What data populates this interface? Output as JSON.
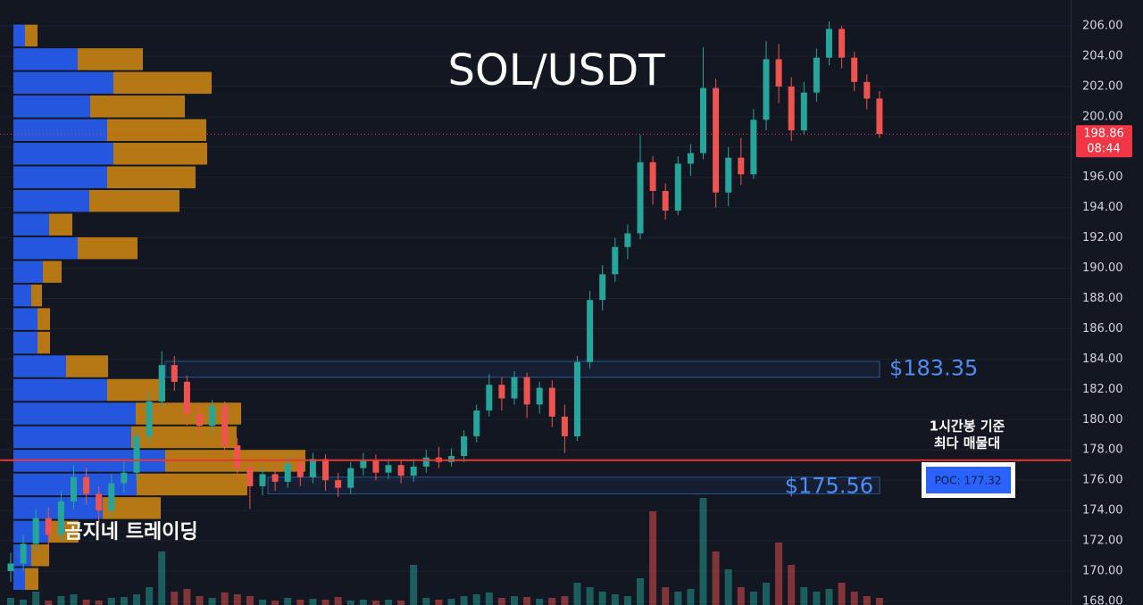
{
  "chart_data": {
    "type": "candlestick",
    "title": "SOL/USDT",
    "watermark": "곰지네 트레이딩",
    "up_color": "#26a69a",
    "down_color": "#ef5350",
    "open": [
      170.0,
      170.5,
      171.8,
      173.5,
      172.4,
      174.6,
      176.2,
      175.1,
      174.0,
      175.8,
      176.5,
      178.9,
      181.2,
      183.6,
      182.5,
      180.4,
      179.6,
      180.9,
      178.3,
      176.8,
      175.6,
      176.4,
      175.9,
      177.1,
      176.2,
      177.4,
      176.0,
      175.5,
      176.8,
      177.3,
      176.5,
      177.0,
      176.3,
      176.9,
      177.5,
      177.2,
      177.6,
      178.9,
      180.6,
      182.3,
      181.4,
      182.8,
      181.0,
      182.1,
      180.2,
      178.9,
      183.8,
      187.9,
      189.6,
      191.4,
      192.3,
      197.0,
      195.1,
      193.8,
      196.9,
      197.6,
      201.9,
      195.0,
      197.3,
      196.2,
      199.8,
      203.8,
      202.0,
      199.1,
      201.6,
      203.9,
      205.8,
      203.9,
      202.3,
      201.2
    ],
    "high": [
      171.2,
      172.4,
      174.1,
      174.2,
      175.3,
      177.0,
      176.8,
      175.6,
      176.4,
      177.2,
      179.4,
      181.8,
      184.5,
      184.2,
      182.9,
      181.0,
      181.3,
      181.2,
      178.8,
      177.2,
      176.9,
      177.0,
      177.6,
      177.5,
      177.8,
      177.7,
      176.5,
      177.2,
      177.8,
      177.7,
      177.4,
      177.3,
      177.4,
      178.0,
      178.2,
      178.1,
      179.3,
      181.0,
      183.0,
      182.8,
      183.2,
      183.1,
      182.5,
      182.6,
      181.0,
      184.2,
      188.5,
      190.2,
      192.0,
      192.9,
      198.8,
      197.4,
      195.6,
      197.4,
      198.2,
      204.6,
      202.5,
      198.0,
      198.6,
      200.5,
      205.0,
      204.8,
      202.6,
      202.3,
      204.5,
      206.3,
      206.0,
      204.3,
      202.8,
      201.7
    ],
    "low": [
      169.3,
      170.0,
      171.3,
      171.6,
      172.0,
      174.1,
      174.4,
      173.2,
      173.6,
      175.2,
      176.0,
      178.4,
      180.8,
      181.9,
      179.6,
      178.8,
      179.0,
      177.6,
      175.9,
      174.1,
      175.0,
      175.3,
      175.5,
      175.6,
      175.8,
      175.3,
      174.9,
      175.1,
      176.3,
      176.0,
      176.1,
      175.8,
      175.9,
      176.5,
      176.8,
      176.9,
      177.2,
      178.5,
      180.2,
      180.6,
      181.0,
      180.1,
      180.4,
      179.5,
      177.8,
      178.6,
      183.4,
      187.2,
      189.1,
      190.6,
      191.9,
      194.2,
      193.2,
      193.5,
      196.1,
      197.2,
      194.0,
      194.1,
      195.5,
      195.9,
      199.1,
      200.9,
      198.4,
      198.8,
      201.0,
      203.4,
      203.2,
      201.7,
      200.5,
      198.6
    ],
    "close": [
      170.5,
      171.8,
      173.5,
      172.4,
      174.6,
      176.2,
      175.1,
      174.0,
      175.8,
      176.5,
      178.9,
      181.2,
      183.6,
      182.5,
      180.4,
      179.6,
      180.9,
      178.3,
      176.8,
      175.6,
      176.4,
      175.9,
      177.1,
      176.2,
      177.4,
      176.0,
      175.5,
      176.8,
      177.3,
      176.5,
      177.0,
      176.3,
      176.9,
      177.5,
      177.2,
      177.6,
      178.9,
      180.6,
      182.3,
      181.4,
      182.8,
      181.0,
      182.1,
      180.2,
      178.9,
      183.8,
      187.9,
      189.6,
      191.4,
      192.3,
      197.0,
      195.1,
      193.8,
      196.9,
      197.6,
      201.9,
      195.0,
      197.3,
      196.2,
      199.8,
      203.8,
      202.0,
      199.1,
      201.6,
      203.9,
      205.8,
      203.9,
      202.3,
      201.2,
      198.86
    ],
    "volume": [
      8,
      6,
      15,
      5,
      10,
      12,
      6,
      5,
      8,
      9,
      12,
      20,
      60,
      15,
      18,
      10,
      8,
      14,
      12,
      10,
      6,
      5,
      8,
      6,
      7,
      6,
      9,
      5,
      6,
      5,
      6,
      5,
      45,
      8,
      6,
      7,
      10,
      12,
      14,
      8,
      10,
      9,
      7,
      8,
      10,
      25,
      20,
      15,
      12,
      10,
      30,
      105,
      20,
      15,
      18,
      120,
      60,
      40,
      20,
      15,
      25,
      70,
      45,
      20,
      15,
      18,
      25,
      15,
      10,
      8
    ],
    "ylim": [
      167.76,
      207.71
    ],
    "yticks": [
      {
        "value": 168,
        "label": "168.00"
      },
      {
        "value": 170,
        "label": "170.00"
      },
      {
        "value": 172,
        "label": "172.00"
      },
      {
        "value": 174,
        "label": "174.00"
      },
      {
        "value": 176,
        "label": "176.00"
      },
      {
        "value": 178,
        "label": "178.00"
      },
      {
        "value": 180,
        "label": "180.00"
      },
      {
        "value": 182,
        "label": "182.00"
      },
      {
        "value": 184,
        "label": "184.00"
      },
      {
        "value": 186,
        "label": "186.00"
      },
      {
        "value": 188,
        "label": "188.00"
      },
      {
        "value": 190,
        "label": "190.00"
      },
      {
        "value": 192,
        "label": "192.00"
      },
      {
        "value": 194,
        "label": "194.00"
      },
      {
        "value": 196,
        "label": "196.00"
      },
      {
        "value": 198,
        "label": "198.00"
      },
      {
        "value": 200,
        "label": "200.00"
      },
      {
        "value": 202,
        "label": "202.00"
      },
      {
        "value": 204,
        "label": "204.00"
      },
      {
        "value": 206,
        "label": "206.00"
      }
    ],
    "grid": true,
    "volume_profile": {
      "bins": [
        168.7,
        170.26,
        171.82,
        173.38,
        174.94,
        176.5,
        178.06,
        179.62,
        181.18,
        182.74,
        184.3,
        185.86,
        187.42,
        188.98,
        190.54,
        192.1,
        193.66,
        195.22,
        196.78,
        198.34,
        199.9,
        201.46,
        203.02,
        204.58,
        206.14
      ],
      "buy": [
        13,
        20,
        40,
        100,
        138,
        170,
        132,
        137,
        105,
        59,
        27,
        27,
        20,
        33,
        72,
        40,
        85,
        105,
        112,
        105,
        86,
        112,
        72,
        13
      ],
      "sell": [
        15,
        20,
        33,
        65,
        124,
        157,
        118,
        118,
        65,
        47,
        14,
        14,
        12,
        21,
        67,
        26,
        101,
        99,
        105,
        111,
        106,
        110,
        73,
        14
      ],
      "buy_color": "#2962ff",
      "sell_color": "#d48a12"
    },
    "zones": [
      {
        "value": 183.35,
        "label": "$183.35",
        "top": 183.85,
        "bottom": 182.8,
        "color": "#3d7fe0"
      },
      {
        "value": 175.56,
        "label": "$175.56",
        "top": 176.2,
        "bottom": 175.1,
        "color": "#3d7fe0"
      }
    ],
    "poc": {
      "value": 177.32,
      "label": "POC: 177.32",
      "note": [
        "1시간봉 기준",
        "최다 매물대"
      ],
      "color": "#e53935"
    },
    "last_price": {
      "value": 198.86,
      "countdown": "08:44",
      "color": "#f23645"
    }
  }
}
